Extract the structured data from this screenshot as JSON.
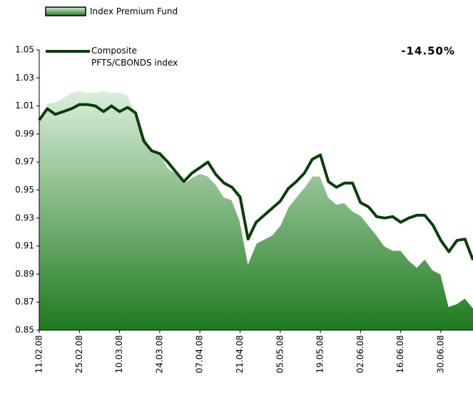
{
  "chart_data": {
    "type": "line",
    "annotation": "-14.50%",
    "categories": [
      "11.02.08",
      null,
      null,
      null,
      null,
      "25.02.08",
      null,
      null,
      null,
      null,
      "10.03.08",
      null,
      null,
      null,
      null,
      "24.03.08",
      null,
      null,
      null,
      null,
      "07.04.08",
      null,
      null,
      null,
      null,
      "21.04.08",
      null,
      null,
      null,
      null,
      "05.05.08",
      null,
      null,
      null,
      null,
      "19.05.08",
      null,
      null,
      null,
      null,
      "02.06.08",
      null,
      null,
      null,
      null,
      "16.06.08",
      null,
      null,
      null,
      null,
      "30.06.08",
      null,
      null,
      null,
      null
    ],
    "series": [
      {
        "name": "Index Premium Fund",
        "style": "area",
        "color": "#2e8b2e",
        "values": [
          1.0,
          1.012,
          1.013,
          1.016,
          1.02,
          1.021,
          1.02,
          1.02,
          1.021,
          1.02,
          1.02,
          1.018,
          1.005,
          0.99,
          0.978,
          0.977,
          0.966,
          0.962,
          0.955,
          0.959,
          0.962,
          0.96,
          0.954,
          0.945,
          0.943,
          0.928,
          0.898,
          0.912,
          0.915,
          0.918,
          0.925,
          0.938,
          0.945,
          0.952,
          0.96,
          0.96,
          0.945,
          0.94,
          0.941,
          0.935,
          0.932,
          0.925,
          0.918,
          0.91,
          0.907,
          0.907,
          0.9,
          0.895,
          0.901,
          0.893,
          0.89,
          0.867,
          0.869,
          0.873,
          0.866
        ]
      },
      {
        "name": "Composite PFTS/CBONDS index",
        "style": "line",
        "color": "#0d3d0d",
        "values": [
          1.0,
          1.008,
          1.004,
          1.006,
          1.008,
          1.011,
          1.011,
          1.01,
          1.006,
          1.01,
          1.006,
          1.009,
          1.005,
          0.985,
          0.978,
          0.976,
          0.97,
          0.963,
          0.956,
          0.962,
          0.966,
          0.97,
          0.961,
          0.955,
          0.952,
          0.945,
          0.915,
          0.927,
          0.932,
          0.937,
          0.942,
          0.951,
          0.956,
          0.962,
          0.972,
          0.975,
          0.956,
          0.952,
          0.955,
          0.955,
          0.941,
          0.938,
          0.931,
          0.93,
          0.931,
          0.927,
          0.93,
          0.932,
          0.932,
          0.925,
          0.914,
          0.906,
          0.914,
          0.915,
          0.9
        ]
      }
    ],
    "ylim": [
      0.85,
      1.05
    ],
    "yticks": [
      0.85,
      0.87,
      0.89,
      0.91,
      0.93,
      0.95,
      0.97,
      0.99,
      1.01,
      1.03,
      1.05
    ]
  }
}
